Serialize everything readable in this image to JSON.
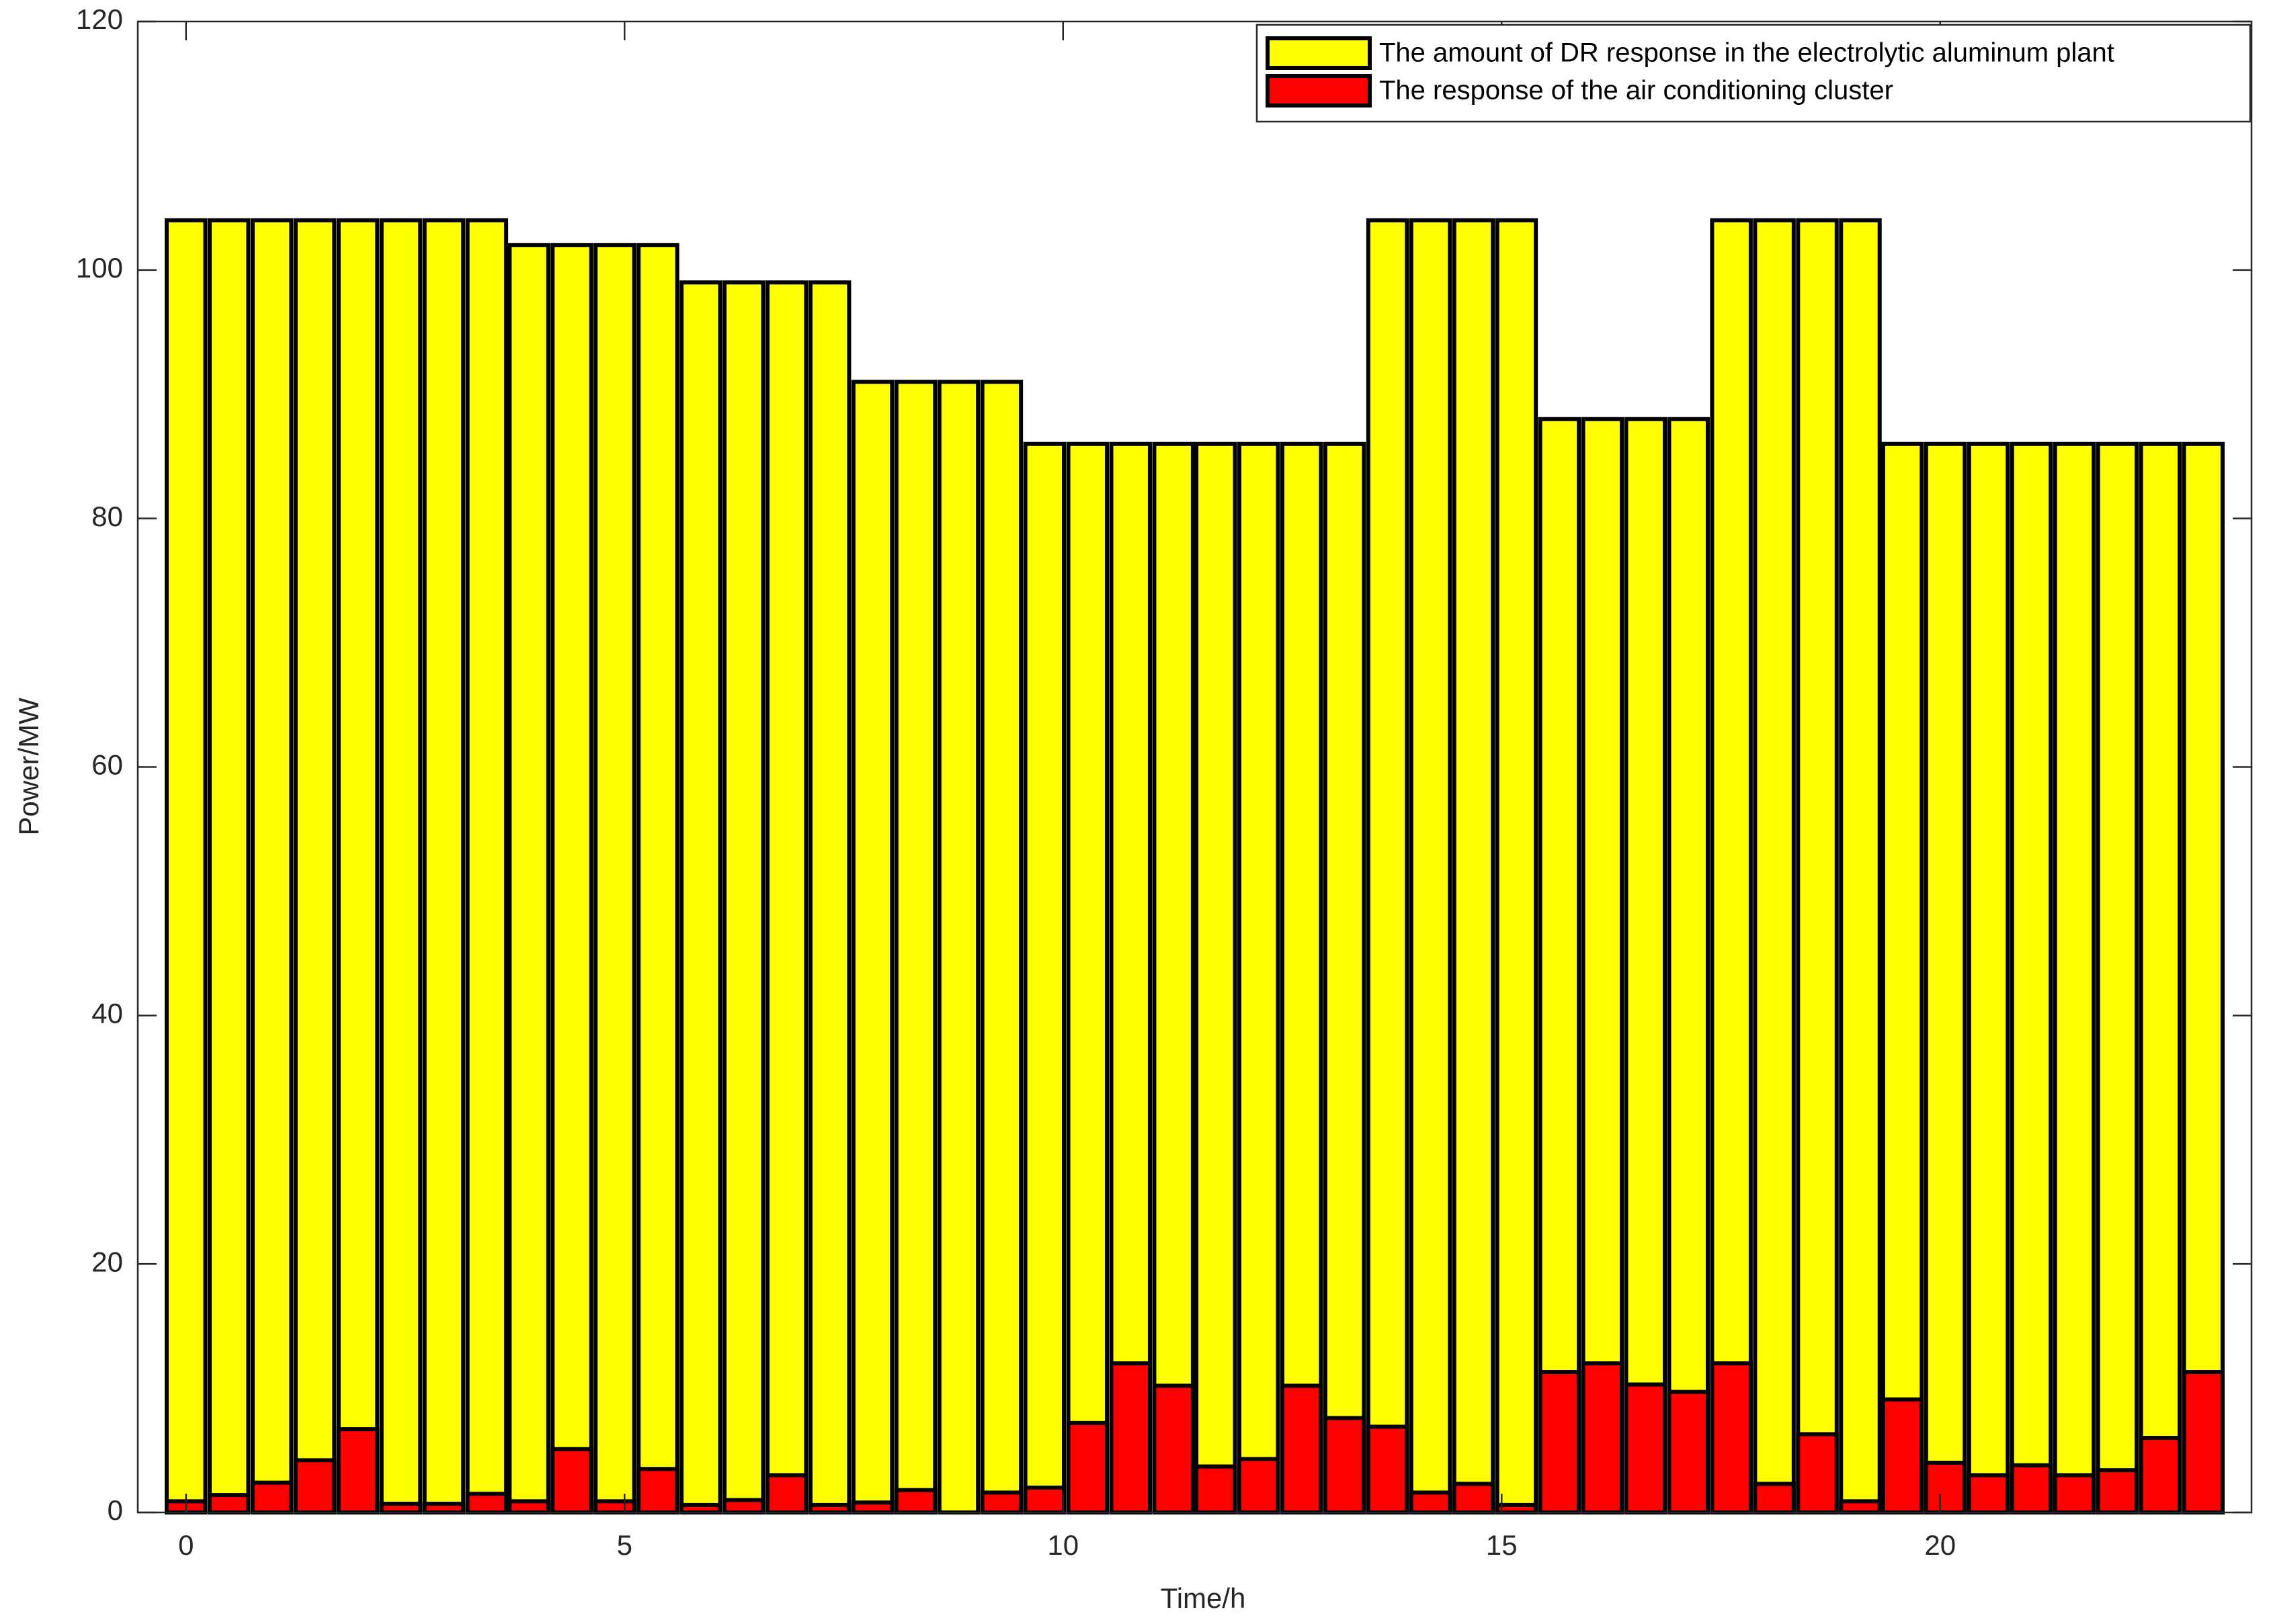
{
  "chart_data": {
    "type": "bar",
    "xlabel": "Time/h",
    "ylabel": "Power/MW",
    "x": [
      0,
      0.49,
      0.98,
      1.47,
      1.96,
      2.45,
      2.94,
      3.43,
      3.91,
      4.4,
      4.89,
      5.38,
      5.87,
      6.36,
      6.85,
      7.34,
      7.83,
      8.32,
      8.81,
      9.3,
      9.79,
      10.28,
      10.77,
      11.26,
      11.74,
      12.23,
      12.72,
      13.21,
      13.7,
      14.19,
      14.68,
      15.17,
      15.66,
      16.15,
      16.64,
      17.13,
      17.62,
      18.11,
      18.6,
      19.09,
      19.57,
      20.06,
      20.55,
      21.04,
      21.53,
      22.02,
      22.51,
      23
    ],
    "series": [
      {
        "name": "The amount of DR response in the electrolytic aluminum plant",
        "color": "#ffff00",
        "values": [
          104,
          104,
          104,
          104,
          104,
          104,
          104,
          104,
          102,
          102,
          102,
          102,
          99,
          99,
          99,
          99,
          91,
          91,
          91,
          91,
          86,
          86,
          86,
          86,
          86,
          86,
          86,
          86,
          104,
          104,
          104,
          104,
          88,
          88,
          88,
          88,
          104,
          104,
          104,
          104,
          86,
          86,
          86,
          86,
          86,
          86,
          86,
          86
        ]
      },
      {
        "name": "The response of the air conditioning cluster",
        "color": "#ff0000",
        "values": [
          0.9,
          1.4,
          2.4,
          4.2,
          6.7,
          0.7,
          0.7,
          1.5,
          0.9,
          5.1,
          0.9,
          3.5,
          0.6,
          1.0,
          3.0,
          0.6,
          0.8,
          1.8,
          0,
          1.6,
          2.0,
          7.2,
          12.0,
          10.2,
          3.7,
          4.3,
          10.2,
          7.6,
          6.9,
          1.6,
          2.3,
          0.6,
          11.3,
          12.0,
          10.3,
          9.7,
          12.0,
          2.3,
          6.3,
          0.9,
          9.1,
          4.0,
          3.0,
          3.8,
          3.0,
          3.4,
          6.0,
          11.3
        ]
      }
    ],
    "xlim": [
      -0.55,
      23.55
    ],
    "xticks": [
      0,
      5,
      10,
      15,
      20
    ],
    "ylim": [
      0,
      120
    ],
    "yticks": [
      0,
      20,
      40,
      60,
      80,
      100,
      120
    ],
    "grid": false,
    "legend": "upper right"
  }
}
